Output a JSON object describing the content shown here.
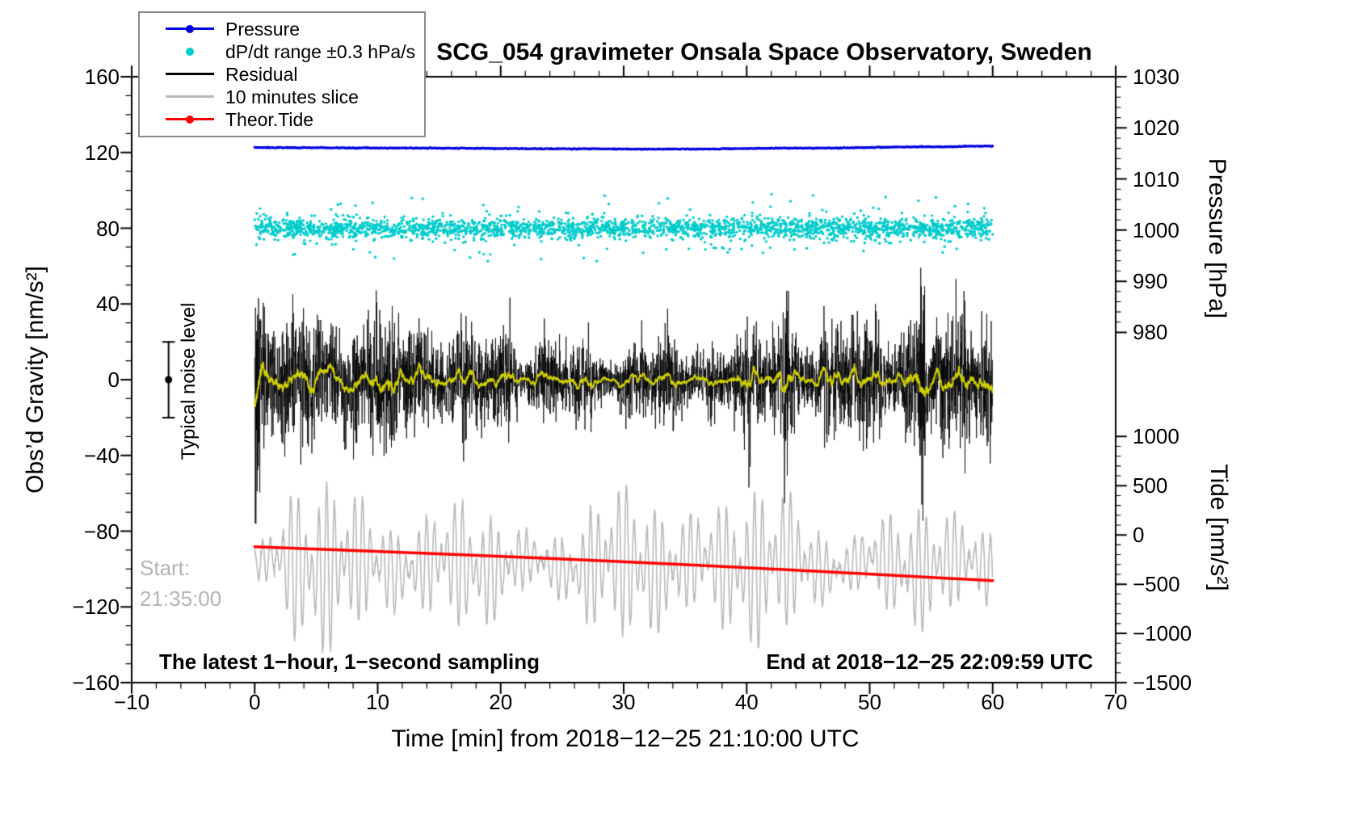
{
  "title": "SCG_054 gravimeter Onsala Space Observatory, Sweden",
  "legend": {
    "items": [
      {
        "label": "Pressure",
        "color": "#0000e0",
        "symbol": "line-dot"
      },
      {
        "label": "dP/dt range ±0.3 hPa/s",
        "color": "#00cbcb",
        "symbol": "dot"
      },
      {
        "label": "Residual",
        "color": "#000000",
        "symbol": "line"
      },
      {
        "label": "10 minutes slice",
        "color": "#b9b9b9",
        "symbol": "line"
      },
      {
        "label": "Theor.Tide",
        "color": "#ff0000",
        "symbol": "line-dot"
      }
    ]
  },
  "annotations": {
    "noise_label": "Typical noise level",
    "start_line1": "Start:",
    "start_line2": "21:35:00",
    "footer_left": "The latest 1−hour, 1−second sampling",
    "footer_right": "End at 2018−12−25 22:09:59 UTC"
  },
  "chart_data": {
    "type": "line",
    "seed": 20181225,
    "title": "SCG_054 gravimeter Onsala Space Observatory, Sweden",
    "grid": false,
    "legend_position": "top-left",
    "x_axis": {
      "label": "Time [min] from 2018−12−25 21:10:00 UTC",
      "min": -10,
      "max": 70,
      "minor_step": 2,
      "tick_values": [
        -10,
        0,
        10,
        20,
        30,
        40,
        50,
        60,
        70
      ],
      "tick_labels": [
        "−10",
        "0",
        "10",
        "20",
        "30",
        "40",
        "50",
        "60",
        "70"
      ]
    },
    "y_left": {
      "label": "Obs’d Gravity [nm/s²]",
      "min": -160,
      "max": 160,
      "minor_step": 10,
      "tick_values": [
        160,
        120,
        80,
        40,
        0,
        -40,
        -80,
        -120,
        -160
      ],
      "tick_labels": [
        "160",
        "120",
        "80",
        "40",
        "0",
        "−40",
        "−80",
        "−120",
        "−160"
      ]
    },
    "y_right_pressure": {
      "label": "Pressure [hPa]",
      "min": 980,
      "max": 1030,
      "minor_step": 2,
      "tick_values": [
        1030,
        1020,
        1010,
        1000,
        990,
        980
      ],
      "tick_labels": [
        "1030",
        "1020",
        "1010",
        "1000",
        "990",
        "980"
      ],
      "ref_hpa": 1030,
      "ref_gravity": 160,
      "gravity_per_hpa": 2.7
    },
    "y_right_tide": {
      "label": "Tide [nm/s²]",
      "min": -1500,
      "max": 1000,
      "minor_step": 100,
      "tick_values": [
        1000,
        500,
        0,
        -500,
        -1000,
        -1500
      ],
      "tick_labels": [
        "1000",
        "500",
        "0",
        "−500",
        "−1000",
        "−1500"
      ],
      "ref_tide": -1500,
      "ref_gravity": -160,
      "gravity_per_unit": 0.052
    },
    "series": [
      {
        "id": "slice",
        "name": "10 minutes slice",
        "type": "line",
        "axis": "gravity",
        "color": "#b9b9b9",
        "line_width": 1.6,
        "center": -98,
        "amp_min": 8,
        "amp_max": 45,
        "periods_min": [
          0.58,
          0.74
        ],
        "x_range": [
          0,
          60
        ],
        "n_points": 2400
      },
      {
        "id": "tide",
        "name": "Theor.Tide",
        "type": "line",
        "axis": "tide",
        "color": "#ff0000",
        "line_width": 3.5,
        "start_tide": -120,
        "end_tide": -465,
        "curve": 20,
        "x_range": [
          0,
          60
        ],
        "n_points": 400
      },
      {
        "id": "dpdt",
        "name": "dP/dt range ±0.3 hPa/s",
        "type": "scatter",
        "axis": "gravity",
        "color": "#00cbcb",
        "center": 80,
        "core_sigma": 2.6,
        "wide_sigma": 5.5,
        "core_fraction": 0.86,
        "wide_fraction": 0.125,
        "outlier_min": 10,
        "outlier_max": 19,
        "n_points": 2600,
        "dot_radius": 1.7,
        "x_range": [
          0,
          60
        ]
      },
      {
        "id": "pressure",
        "name": "Pressure",
        "type": "line",
        "axis": "pressure",
        "color": "#0000e0",
        "line_width": 3.2,
        "control_points_hpa": [
          [
            0,
            1016.15
          ],
          [
            12,
            1016.05
          ],
          [
            26,
            1015.9
          ],
          [
            34,
            1015.85
          ],
          [
            46,
            1016.05
          ],
          [
            55,
            1016.3
          ],
          [
            60,
            1016.45
          ]
        ],
        "noise_hpa": 0.04,
        "n_points": 800,
        "x_range": [
          0,
          60
        ]
      },
      {
        "id": "residual",
        "name": "Residual",
        "type": "line",
        "axis": "gravity",
        "color": "#000000",
        "line_width": 0.8,
        "mean": 0,
        "sigma": 18,
        "clip": 76,
        "n_points": 3600,
        "x_range": [
          0,
          60
        ],
        "bursts": [
          [
            0.15,
            2.6
          ],
          [
            8.3,
            1.5
          ],
          [
            15.2,
            1.4
          ],
          [
            31.5,
            1.5
          ],
          [
            43.2,
            2.3
          ],
          [
            54.3,
            2.4
          ],
          [
            57.8,
            1.6
          ]
        ]
      },
      {
        "id": "smooth",
        "name": "Residual 1-min mean",
        "type": "line",
        "axis": "gravity",
        "color": "#cfcf00",
        "line_width": 2,
        "window": 15
      }
    ],
    "noise_marker": {
      "x": -7,
      "gravity": 0,
      "error": 20,
      "label": "Typical noise level"
    }
  }
}
